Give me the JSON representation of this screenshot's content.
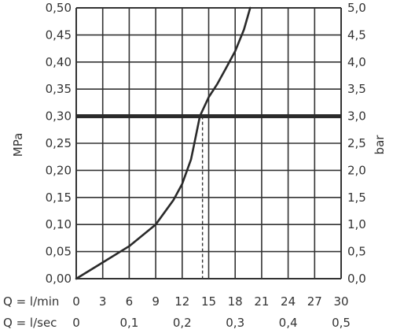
{
  "chart_data": {
    "type": "line",
    "ylabel_left": "MPa",
    "ylabel_right": "bar",
    "ylim": [
      0,
      0.5
    ],
    "y_ticks_left": [
      "0,00",
      "0,05",
      "0,10",
      "0,15",
      "0,20",
      "0,25",
      "0,30",
      "0,35",
      "0,40",
      "0,45",
      "0,50"
    ],
    "y_ticks_right": [
      "0,0",
      "0,5",
      "1,0",
      "1,5",
      "2,0",
      "2,5",
      "3,0",
      "3,5",
      "4,0",
      "4,5",
      "5,0"
    ],
    "x_axis_primary": {
      "label": "Q = l/min",
      "ticks": [
        "0",
        "3",
        "6",
        "9",
        "12",
        "15",
        "18",
        "21",
        "24",
        "27",
        "30"
      ],
      "range": [
        0,
        30
      ]
    },
    "x_axis_secondary": {
      "label": "Q = l/sec",
      "ticks": [
        "0",
        "0,1",
        "0,2",
        "0,3",
        "0,4",
        "0,5"
      ]
    },
    "grid": true,
    "reference_line": {
      "y": 0.3,
      "intersect_x": 14.3
    },
    "series": [
      {
        "x": [
          0,
          3,
          6,
          9,
          11,
          12,
          13,
          13.5,
          14,
          15,
          16,
          17,
          18,
          19,
          19.7
        ],
        "y": [
          0,
          0.03,
          0.06,
          0.1,
          0.145,
          0.175,
          0.22,
          0.26,
          0.3,
          0.335,
          0.36,
          0.39,
          0.42,
          0.46,
          0.5
        ]
      }
    ]
  }
}
